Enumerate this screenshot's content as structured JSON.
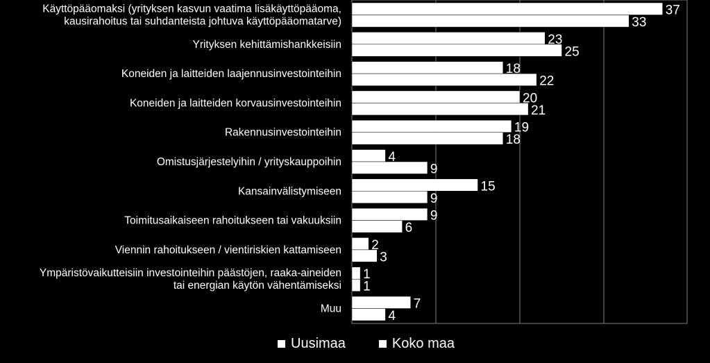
{
  "chart_data": {
    "type": "bar",
    "orientation": "horizontal",
    "categories": [
      "Käyttöpääomaksi (yrityksen kasvun vaatima lisäkäyttöpääoma,\nkausirahoitus tai suhdanteista johtuva käyttöpääomatarve)",
      "Yrityksen kehittämishankkeisiin",
      "Koneiden ja laitteiden laajennusinvestointeihin",
      "Koneiden ja laitteiden korvausinvestointeihin",
      "Rakennusinvestointeihin",
      "Omistusjärjestelyihin / yrityskauppoihin",
      "Kansainvälistymiseen",
      "Toimitusaikaiseen rahoitukseen tai vakuuksiin",
      "Viennin rahoitukseen / vientiriskien kattamiseen",
      "Ympäristövaikutteisiin investointeihin päästöjen, raaka-aineiden\ntai energian käytön vähentämiseksi",
      "Muu"
    ],
    "series": [
      {
        "name": "Uusimaa",
        "values": [
          37,
          23,
          18,
          20,
          19,
          4,
          15,
          9,
          2,
          1,
          7
        ]
      },
      {
        "name": "Koko maa",
        "values": [
          33,
          25,
          22,
          21,
          18,
          9,
          9,
          6,
          3,
          1,
          4
        ]
      }
    ],
    "xlim": [
      0,
      40
    ],
    "grid": true,
    "legend": "bottom",
    "colors": {
      "background": "#000000",
      "bars": "#ffffff",
      "text": "#ffffff"
    }
  },
  "legend": {
    "series1": "Uusimaa",
    "series2": "Koko maa"
  }
}
